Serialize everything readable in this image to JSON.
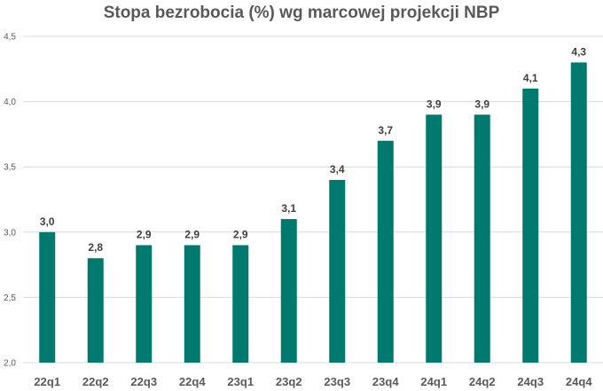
{
  "chart_data": {
    "type": "bar",
    "title": "Stopa bezrobocia (%) wg marcowej projekcji NBP",
    "xlabel": "",
    "ylabel": "",
    "categories": [
      "22q1",
      "22q2",
      "22q3",
      "22q4",
      "23q1",
      "23q2",
      "23q3",
      "23q4",
      "24q1",
      "24q2",
      "24q3",
      "24q4"
    ],
    "values": [
      3.0,
      2.8,
      2.9,
      2.9,
      2.9,
      3.1,
      3.4,
      3.7,
      3.9,
      3.9,
      4.1,
      4.3
    ],
    "data_labels": [
      "3,0",
      "2,8",
      "2,9",
      "2,9",
      "2,9",
      "3,1",
      "3,4",
      "3,7",
      "3,9",
      "3,9",
      "4,1",
      "4,3"
    ],
    "ylim": [
      2.0,
      4.5
    ],
    "y_ticks": [
      2.0,
      2.5,
      3.0,
      3.5,
      4.0,
      4.5
    ],
    "y_tick_labels": [
      "2,0",
      "2,5",
      "3,0",
      "3,5",
      "4,0",
      "4,5"
    ],
    "grid": true,
    "legend": "none",
    "colors": {
      "bar": "#007a6e",
      "grid": "#d9d9d9",
      "text": "#595959"
    }
  }
}
